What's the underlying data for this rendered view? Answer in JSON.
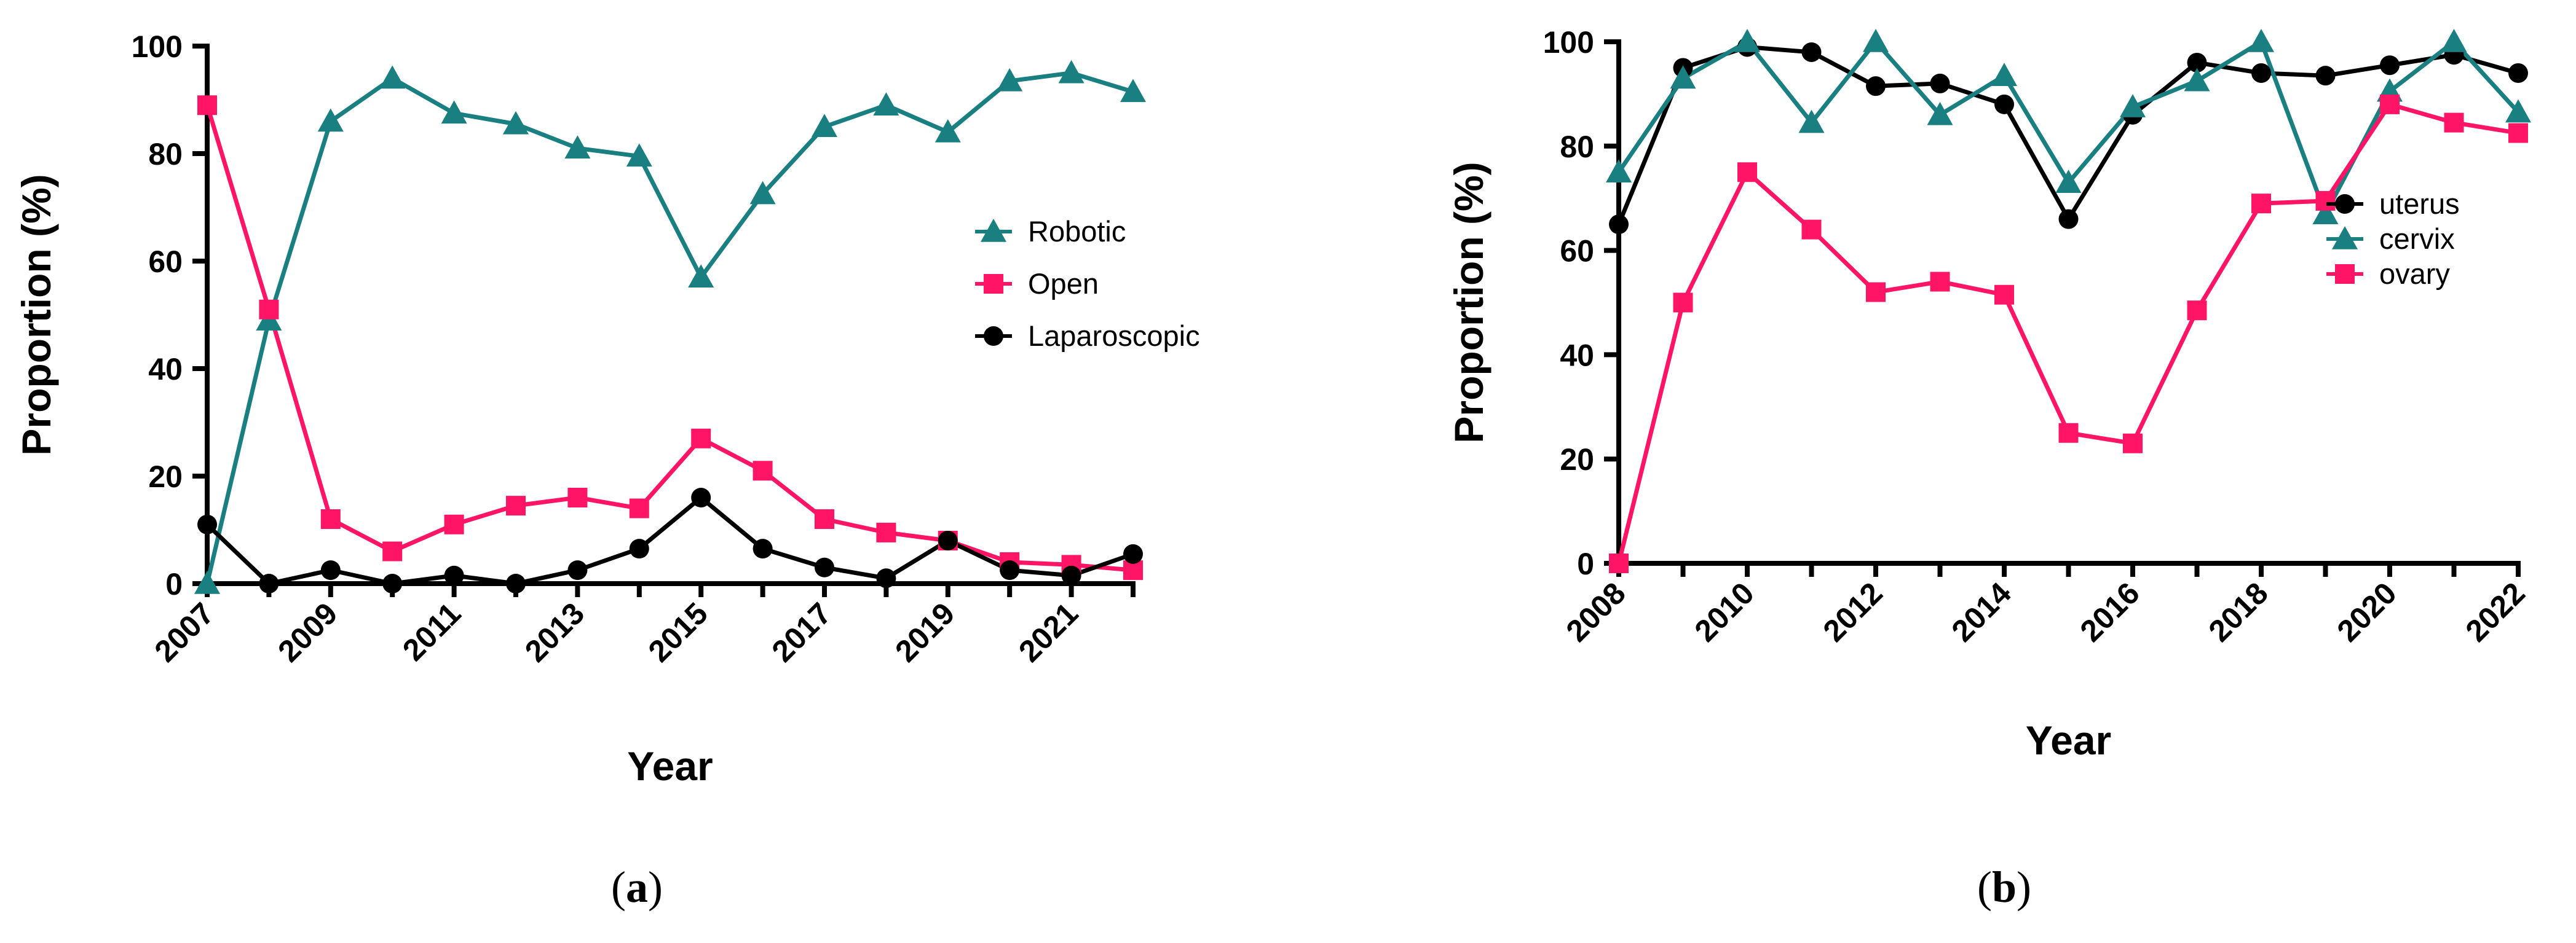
{
  "colors": {
    "robotic": "#1a7f80",
    "open": "#ff1466",
    "laparoscopic": "#000000",
    "uterus": "#000000",
    "cervix": "#1a7f80",
    "ovary": "#ff1466"
  },
  "chart_data": [
    {
      "type": "line",
      "panel_label": "a",
      "xlabel": "Year",
      "ylabel": "Proportion (%)",
      "ylim": [
        0,
        100
      ],
      "yticks": [
        0,
        20,
        40,
        60,
        80,
        100
      ],
      "xlim": [
        2007,
        2022
      ],
      "xtick_labels": [
        "2007",
        "2009",
        "2011",
        "2013",
        "2015",
        "2017",
        "2019",
        "2021"
      ],
      "x": [
        2007,
        2008,
        2009,
        2010,
        2011,
        2012,
        2013,
        2014,
        2015,
        2016,
        2017,
        2018,
        2019,
        2020,
        2021,
        2022
      ],
      "legend_position": "right",
      "series": [
        {
          "name": "Robotic",
          "marker": "triangle",
          "color_key": "robotic",
          "values": [
            0,
            49,
            86,
            94,
            87.5,
            85.5,
            81,
            79.5,
            57,
            72.5,
            85,
            89,
            84,
            93.5,
            95,
            91.5
          ]
        },
        {
          "name": "Open",
          "marker": "square",
          "color_key": "open",
          "values": [
            89,
            51,
            12,
            6,
            11,
            14.5,
            16,
            14,
            27,
            21,
            12,
            9.5,
            8,
            4,
            3.5,
            2.5
          ]
        },
        {
          "name": "Laparoscopic",
          "marker": "circle",
          "color_key": "laparoscopic",
          "values": [
            11,
            0,
            2.5,
            0,
            1.5,
            0,
            2.5,
            6.5,
            16,
            6.5,
            3,
            1,
            8,
            2.5,
            1.5,
            5.5
          ]
        }
      ]
    },
    {
      "type": "line",
      "panel_label": "b",
      "xlabel": "Year",
      "ylabel": "Proportion (%)",
      "ylim": [
        0,
        100
      ],
      "yticks": [
        0,
        20,
        40,
        60,
        80,
        100
      ],
      "xlim": [
        2008,
        2022
      ],
      "xtick_labels": [
        "2008",
        "2010",
        "2012",
        "2014",
        "2016",
        "2018",
        "2020",
        "2022"
      ],
      "x": [
        2008,
        2009,
        2010,
        2011,
        2012,
        2013,
        2014,
        2015,
        2016,
        2017,
        2018,
        2019,
        2020,
        2021,
        2022
      ],
      "legend_position": "right",
      "series": [
        {
          "name": "uterus",
          "marker": "circle",
          "color_key": "uterus",
          "values": [
            65,
            95,
            99,
            98,
            91.5,
            92,
            88,
            66,
            86,
            96,
            94,
            93.5,
            95.5,
            97.5,
            94
          ]
        },
        {
          "name": "cervix",
          "marker": "triangle",
          "color_key": "cervix",
          "values": [
            75,
            93,
            100,
            84.5,
            100,
            86,
            93.5,
            73,
            87.5,
            92.5,
            100,
            67,
            90.5,
            100,
            86.5
          ]
        },
        {
          "name": "ovary",
          "marker": "square",
          "color_key": "ovary",
          "values": [
            0,
            50,
            75,
            64,
            52,
            54,
            51.5,
            25,
            23,
            48.5,
            69,
            69.5,
            88,
            84.5,
            82.5
          ]
        }
      ]
    }
  ]
}
